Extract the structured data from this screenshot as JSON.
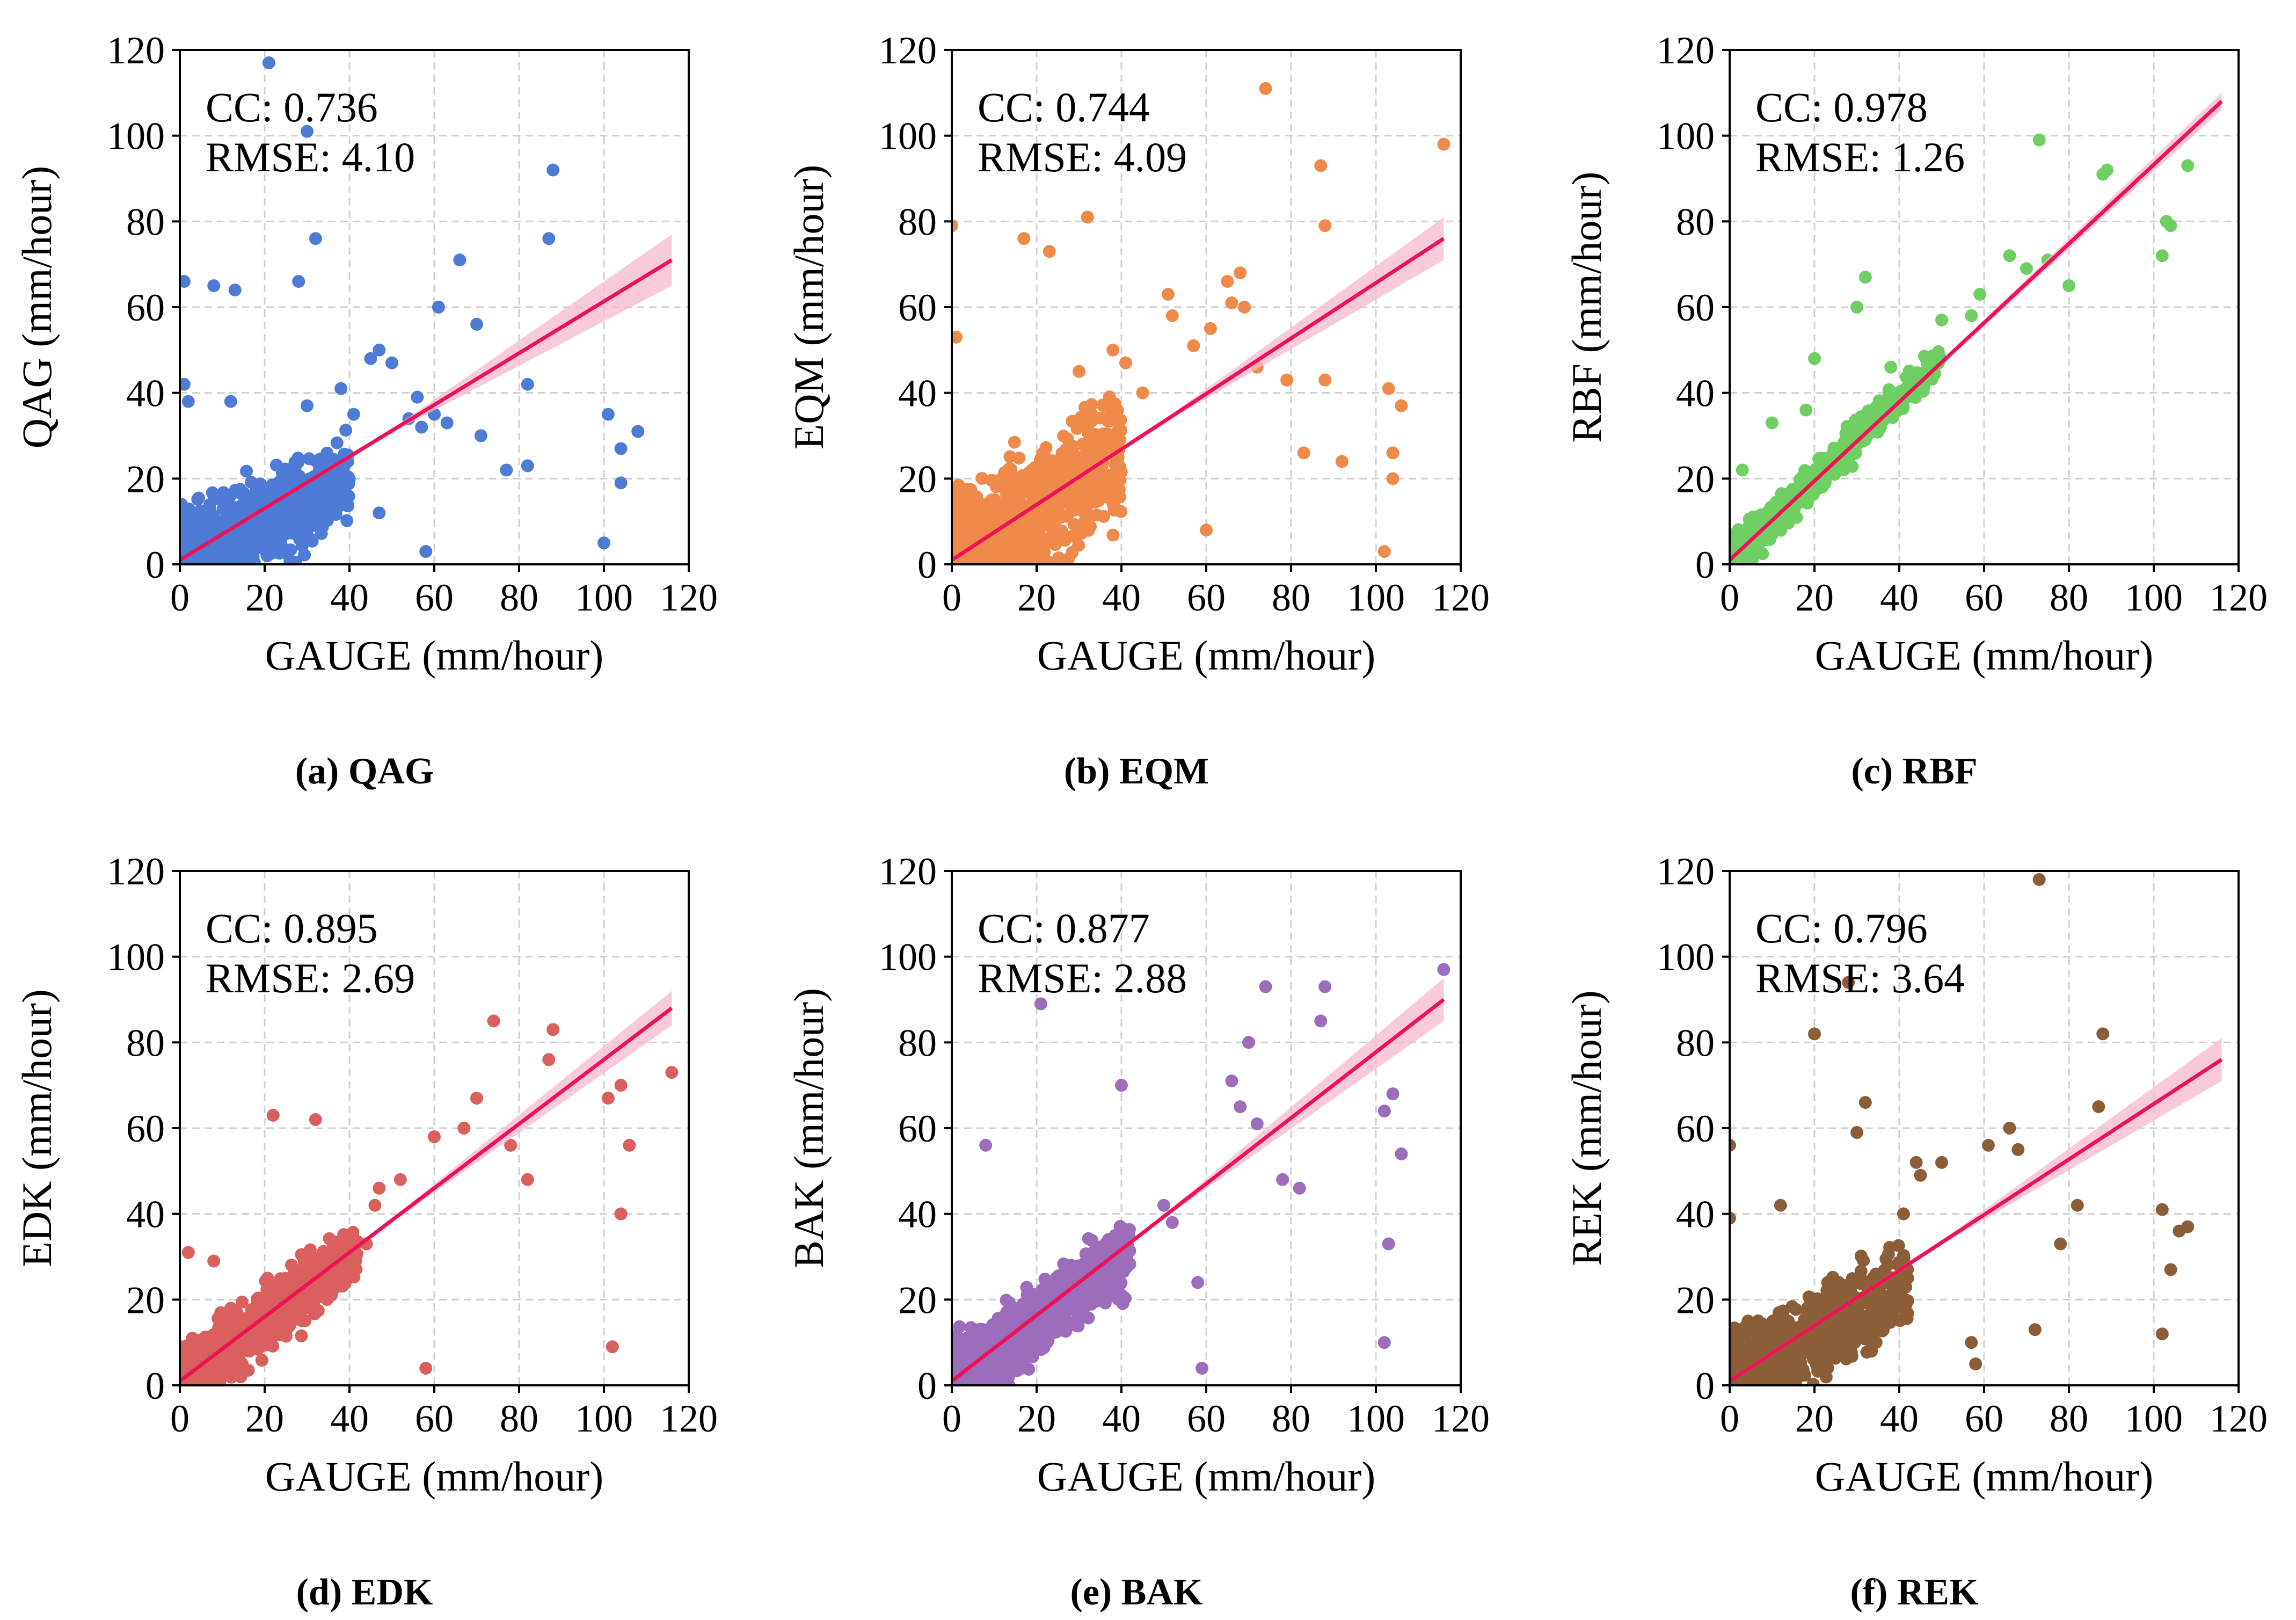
{
  "figure": {
    "x_range": [
      0,
      120
    ],
    "y_range": [
      0,
      120
    ],
    "x_ticks": [
      "0",
      "20",
      "40",
      "60",
      "80",
      "100",
      "120"
    ],
    "y_ticks": [
      "0",
      "20",
      "40",
      "60",
      "80",
      "100",
      "120"
    ],
    "xlabel": "GAUGE (mm/hour)",
    "fit_color": "#ee1155",
    "band_color": "#f7b9cd"
  },
  "chart_data": [
    {
      "type": "scatter",
      "id": "qag",
      "ylabel": "QAG (mm/hour)",
      "caption": "(a) QAG",
      "cc_text": "CC: 0.736",
      "rmse_text": "RMSE: 4.10",
      "color": "#4d7bd6",
      "xlim": [
        0,
        120
      ],
      "ylim": [
        0,
        120
      ],
      "fit": {
        "x": [
          0,
          116
        ],
        "y": [
          1,
          71
        ],
        "band": 6
      },
      "outliers": [
        [
          21,
          117
        ],
        [
          30,
          101
        ],
        [
          88,
          92
        ],
        [
          87,
          76
        ],
        [
          32,
          76
        ],
        [
          8,
          65
        ],
        [
          1,
          66
        ],
        [
          13,
          64
        ],
        [
          28,
          66
        ],
        [
          66,
          71
        ],
        [
          61,
          60
        ],
        [
          70,
          56
        ],
        [
          1,
          42
        ],
        [
          82,
          42
        ],
        [
          45,
          48
        ],
        [
          47,
          50
        ],
        [
          50,
          47
        ],
        [
          38,
          41
        ],
        [
          41,
          35
        ],
        [
          30,
          37
        ],
        [
          2,
          38
        ],
        [
          12,
          38
        ],
        [
          101,
          35
        ],
        [
          108,
          31
        ],
        [
          104,
          27
        ],
        [
          71,
          30
        ],
        [
          57,
          32
        ],
        [
          56,
          39
        ],
        [
          60,
          35
        ],
        [
          54,
          34
        ],
        [
          63,
          33
        ],
        [
          82,
          23
        ],
        [
          77,
          22
        ],
        [
          100,
          5
        ],
        [
          104,
          19
        ],
        [
          58,
          3
        ],
        [
          47,
          12
        ]
      ],
      "cloud": {
        "n": 900,
        "xmax": 40,
        "ymax": 32,
        "slope": 0.45,
        "spread": 6,
        "seed": 11
      }
    },
    {
      "type": "scatter",
      "id": "eqm",
      "ylabel": "EQM (mm/hour)",
      "caption": "(b) EQM",
      "cc_text": "CC: 0.744",
      "rmse_text": "RMSE: 4.09",
      "color": "#ef8a4a",
      "xlim": [
        0,
        120
      ],
      "ylim": [
        0,
        120
      ],
      "fit": {
        "x": [
          0,
          116
        ],
        "y": [
          1,
          76
        ],
        "band": 5
      },
      "outliers": [
        [
          74,
          111
        ],
        [
          116,
          98
        ],
        [
          87,
          93
        ],
        [
          88,
          79
        ],
        [
          0,
          79
        ],
        [
          32,
          81
        ],
        [
          17,
          76
        ],
        [
          23,
          73
        ],
        [
          68,
          68
        ],
        [
          65,
          66
        ],
        [
          51,
          63
        ],
        [
          52,
          58
        ],
        [
          57,
          51
        ],
        [
          66,
          61
        ],
        [
          69,
          60
        ],
        [
          61,
          55
        ],
        [
          72,
          46
        ],
        [
          79,
          43
        ],
        [
          88,
          43
        ],
        [
          103,
          41
        ],
        [
          106,
          37
        ],
        [
          104,
          26
        ],
        [
          104,
          20
        ],
        [
          102,
          3
        ],
        [
          83,
          26
        ],
        [
          92,
          24
        ],
        [
          60,
          8
        ],
        [
          38,
          50
        ],
        [
          41,
          47
        ],
        [
          30,
          45
        ],
        [
          1,
          53
        ],
        [
          45,
          40
        ]
      ],
      "cloud": {
        "n": 900,
        "xmax": 40,
        "ymax": 45,
        "slope": 0.6,
        "spread": 9,
        "seed": 23
      }
    },
    {
      "type": "scatter",
      "id": "rbf",
      "ylabel": "RBF (mm/hour)",
      "caption": "(c) RBF",
      "cc_text": "CC: 0.978",
      "rmse_text": "RMSE: 1.26",
      "color": "#6fcf63",
      "xlim": [
        0,
        120
      ],
      "ylim": [
        0,
        120
      ],
      "fit": {
        "x": [
          0,
          116
        ],
        "y": [
          1,
          108
        ],
        "band": 2
      },
      "outliers": [
        [
          73,
          99
        ],
        [
          89,
          92
        ],
        [
          88,
          91
        ],
        [
          108,
          93
        ],
        [
          103,
          80
        ],
        [
          104,
          79
        ],
        [
          102,
          72
        ],
        [
          75,
          71
        ],
        [
          70,
          69
        ],
        [
          66,
          72
        ],
        [
          80,
          65
        ],
        [
          32,
          67
        ],
        [
          20,
          48
        ],
        [
          30,
          60
        ],
        [
          59,
          63
        ],
        [
          50,
          57
        ],
        [
          57,
          58
        ],
        [
          38,
          46
        ],
        [
          43,
          44
        ],
        [
          10,
          33
        ],
        [
          18,
          36
        ],
        [
          3,
          22
        ]
      ],
      "cloud": {
        "n": 700,
        "xmax": 50,
        "ymax": 55,
        "slope": 0.95,
        "spread": 2.5,
        "seed": 37
      }
    },
    {
      "type": "scatter",
      "id": "edk",
      "ylabel": "EDK (mm/hour)",
      "caption": "(d) EDK",
      "cc_text": "CC: 0.895",
      "rmse_text": "RMSE: 2.69",
      "color": "#d9605c",
      "xlim": [
        0,
        120
      ],
      "ylim": [
        0,
        120
      ],
      "fit": {
        "x": [
          0,
          116
        ],
        "y": [
          1,
          88
        ],
        "band": 4
      },
      "outliers": [
        [
          74,
          85
        ],
        [
          88,
          83
        ],
        [
          87,
          76
        ],
        [
          104,
          70
        ],
        [
          116,
          73
        ],
        [
          101,
          67
        ],
        [
          70,
          67
        ],
        [
          22,
          63
        ],
        [
          32,
          62
        ],
        [
          60,
          58
        ],
        [
          67,
          60
        ],
        [
          78,
          56
        ],
        [
          82,
          48
        ],
        [
          106,
          56
        ],
        [
          104,
          40
        ],
        [
          102,
          9
        ],
        [
          58,
          4
        ],
        [
          47,
          46
        ],
        [
          46,
          42
        ],
        [
          52,
          48
        ],
        [
          44,
          33
        ],
        [
          2,
          31
        ],
        [
          8,
          29
        ]
      ],
      "cloud": {
        "n": 900,
        "xmax": 42,
        "ymax": 36,
        "slope": 0.72,
        "spread": 4.5,
        "seed": 51
      }
    },
    {
      "type": "scatter",
      "id": "bak",
      "ylabel": "BAK (mm/hour)",
      "caption": "(e) BAK",
      "cc_text": "CC: 0.877",
      "rmse_text": "RMSE: 2.88",
      "color": "#9b6dbb",
      "xlim": [
        0,
        120
      ],
      "ylim": [
        0,
        120
      ],
      "fit": {
        "x": [
          0,
          116
        ],
        "y": [
          1,
          90
        ],
        "band": 5
      },
      "outliers": [
        [
          116,
          97
        ],
        [
          74,
          93
        ],
        [
          88,
          93
        ],
        [
          87,
          85
        ],
        [
          21,
          89
        ],
        [
          70,
          80
        ],
        [
          40,
          70
        ],
        [
          66,
          71
        ],
        [
          68,
          65
        ],
        [
          72,
          61
        ],
        [
          78,
          48
        ],
        [
          82,
          46
        ],
        [
          104,
          68
        ],
        [
          102,
          64
        ],
        [
          106,
          54
        ],
        [
          103,
          33
        ],
        [
          102,
          10
        ],
        [
          59,
          4
        ],
        [
          58,
          24
        ],
        [
          52,
          38
        ],
        [
          8,
          56
        ],
        [
          50,
          42
        ]
      ],
      "cloud": {
        "n": 900,
        "xmax": 42,
        "ymax": 38,
        "slope": 0.72,
        "spread": 5,
        "seed": 67
      }
    },
    {
      "type": "scatter",
      "id": "rek",
      "ylabel": "REK (mm/hour)",
      "caption": "(f) REK",
      "cc_text": "CC: 0.796",
      "rmse_text": "RMSE: 3.64",
      "color": "#8c5e37",
      "xlim": [
        0,
        120
      ],
      "ylim": [
        0,
        120
      ],
      "fit": {
        "x": [
          0,
          116
        ],
        "y": [
          1,
          76
        ],
        "band": 5
      },
      "outliers": [
        [
          73,
          118
        ],
        [
          28,
          94
        ],
        [
          20,
          82
        ],
        [
          88,
          82
        ],
        [
          32,
          66
        ],
        [
          87,
          65
        ],
        [
          66,
          60
        ],
        [
          68,
          55
        ],
        [
          61,
          56
        ],
        [
          50,
          52
        ],
        [
          45,
          49
        ],
        [
          44,
          52
        ],
        [
          41,
          40
        ],
        [
          102,
          41
        ],
        [
          106,
          36
        ],
        [
          108,
          37
        ],
        [
          104,
          27
        ],
        [
          102,
          12
        ],
        [
          82,
          42
        ],
        [
          78,
          33
        ],
        [
          72,
          13
        ],
        [
          57,
          10
        ],
        [
          58,
          5
        ],
        [
          0,
          56
        ],
        [
          0,
          39
        ],
        [
          12,
          42
        ],
        [
          30,
          59
        ]
      ],
      "cloud": {
        "n": 900,
        "xmax": 42,
        "ymax": 34,
        "slope": 0.55,
        "spread": 6,
        "seed": 83
      }
    }
  ]
}
